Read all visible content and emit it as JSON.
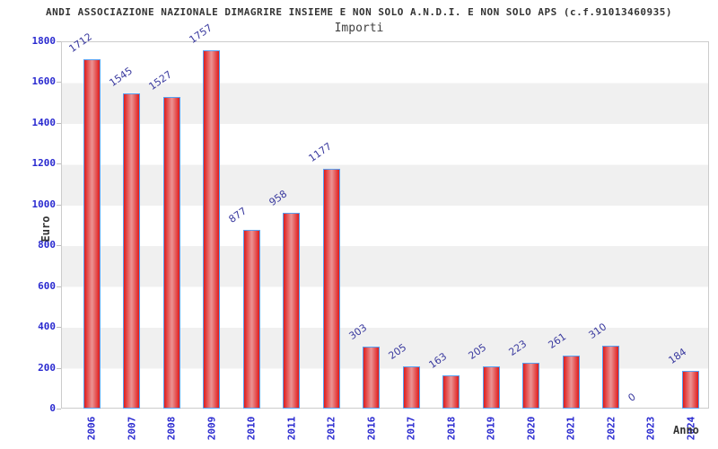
{
  "header": {
    "title": "ANDI ASSOCIAZIONE NAZIONALE DIMAGRIRE INSIEME E NON SOLO A.N.D.I. E NON SOLO APS (c.f.91013460935)",
    "subtitle": "Importi"
  },
  "chart_data": {
    "type": "bar",
    "title": "Importi",
    "categories": [
      "2006",
      "2007",
      "2008",
      "2009",
      "2010",
      "2011",
      "2012",
      "2016",
      "2017",
      "2018",
      "2019",
      "2020",
      "2021",
      "2022",
      "2023",
      "2024"
    ],
    "values": [
      1712,
      1545,
      1527,
      1757,
      877,
      958,
      1177,
      303,
      205,
      163,
      205,
      223,
      261,
      310,
      0,
      184
    ],
    "xlabel": "Anno",
    "ylabel": "Euro",
    "ylim": [
      0,
      1800
    ],
    "ytick_step": 200,
    "yticks": [
      1800,
      1600,
      1400,
      1200,
      1000,
      800,
      600,
      400,
      200,
      0
    ],
    "grid": "alternating horizontal bands every 200, white/gray",
    "legend": "none",
    "value_labels": "shown above each bar, rotated"
  },
  "colors": {
    "bar_fill_edge": "#df1c1c",
    "bar_fill_center": "#eb9494",
    "bar_border": "#58a0f0",
    "axis_tick_label": "#2a2ad0",
    "value_label": "#3a3a9f",
    "band_gray": "#f0f0f0",
    "band_white": "#ffffff",
    "plot_border": "#cccccc",
    "title_color": "#333333"
  }
}
